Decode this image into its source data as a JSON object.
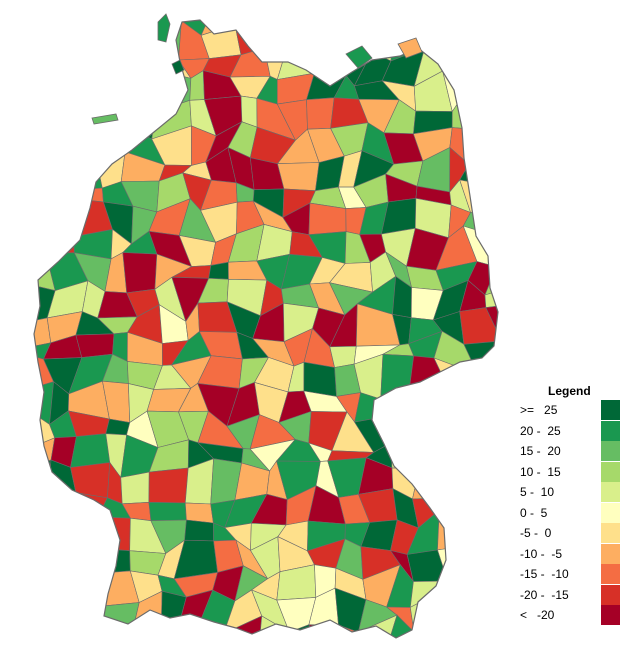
{
  "map": {
    "colors": [
      "#006837",
      "#1a9850",
      "#66bd63",
      "#a6d96a",
      "#d9ef8b",
      "#ffffbf",
      "#fee08b",
      "#fdae61",
      "#f46d43",
      "#d73027",
      "#a50026"
    ],
    "border_color": "#6b6b6b"
  },
  "legend": {
    "title": "Legend",
    "items": [
      {
        "label": ">=   25",
        "color": "#006837"
      },
      {
        "label": "20 -  25",
        "color": "#1a9850"
      },
      {
        "label": "15 -  20",
        "color": "#66bd63"
      },
      {
        "label": "10 -  15",
        "color": "#a6d96a"
      },
      {
        "label": "5 -  10",
        "color": "#d9ef8b"
      },
      {
        "label": "0 -  5",
        "color": "#ffffbf"
      },
      {
        "label": "-5 -  0",
        "color": "#fee08b"
      },
      {
        "label": "-10 -  -5",
        "color": "#fdae61"
      },
      {
        "label": "-15 -  -10",
        "color": "#f46d43"
      },
      {
        "label": "-20 -  -15",
        "color": "#d73027"
      },
      {
        "label": "<   -20",
        "color": "#a50026"
      }
    ]
  }
}
